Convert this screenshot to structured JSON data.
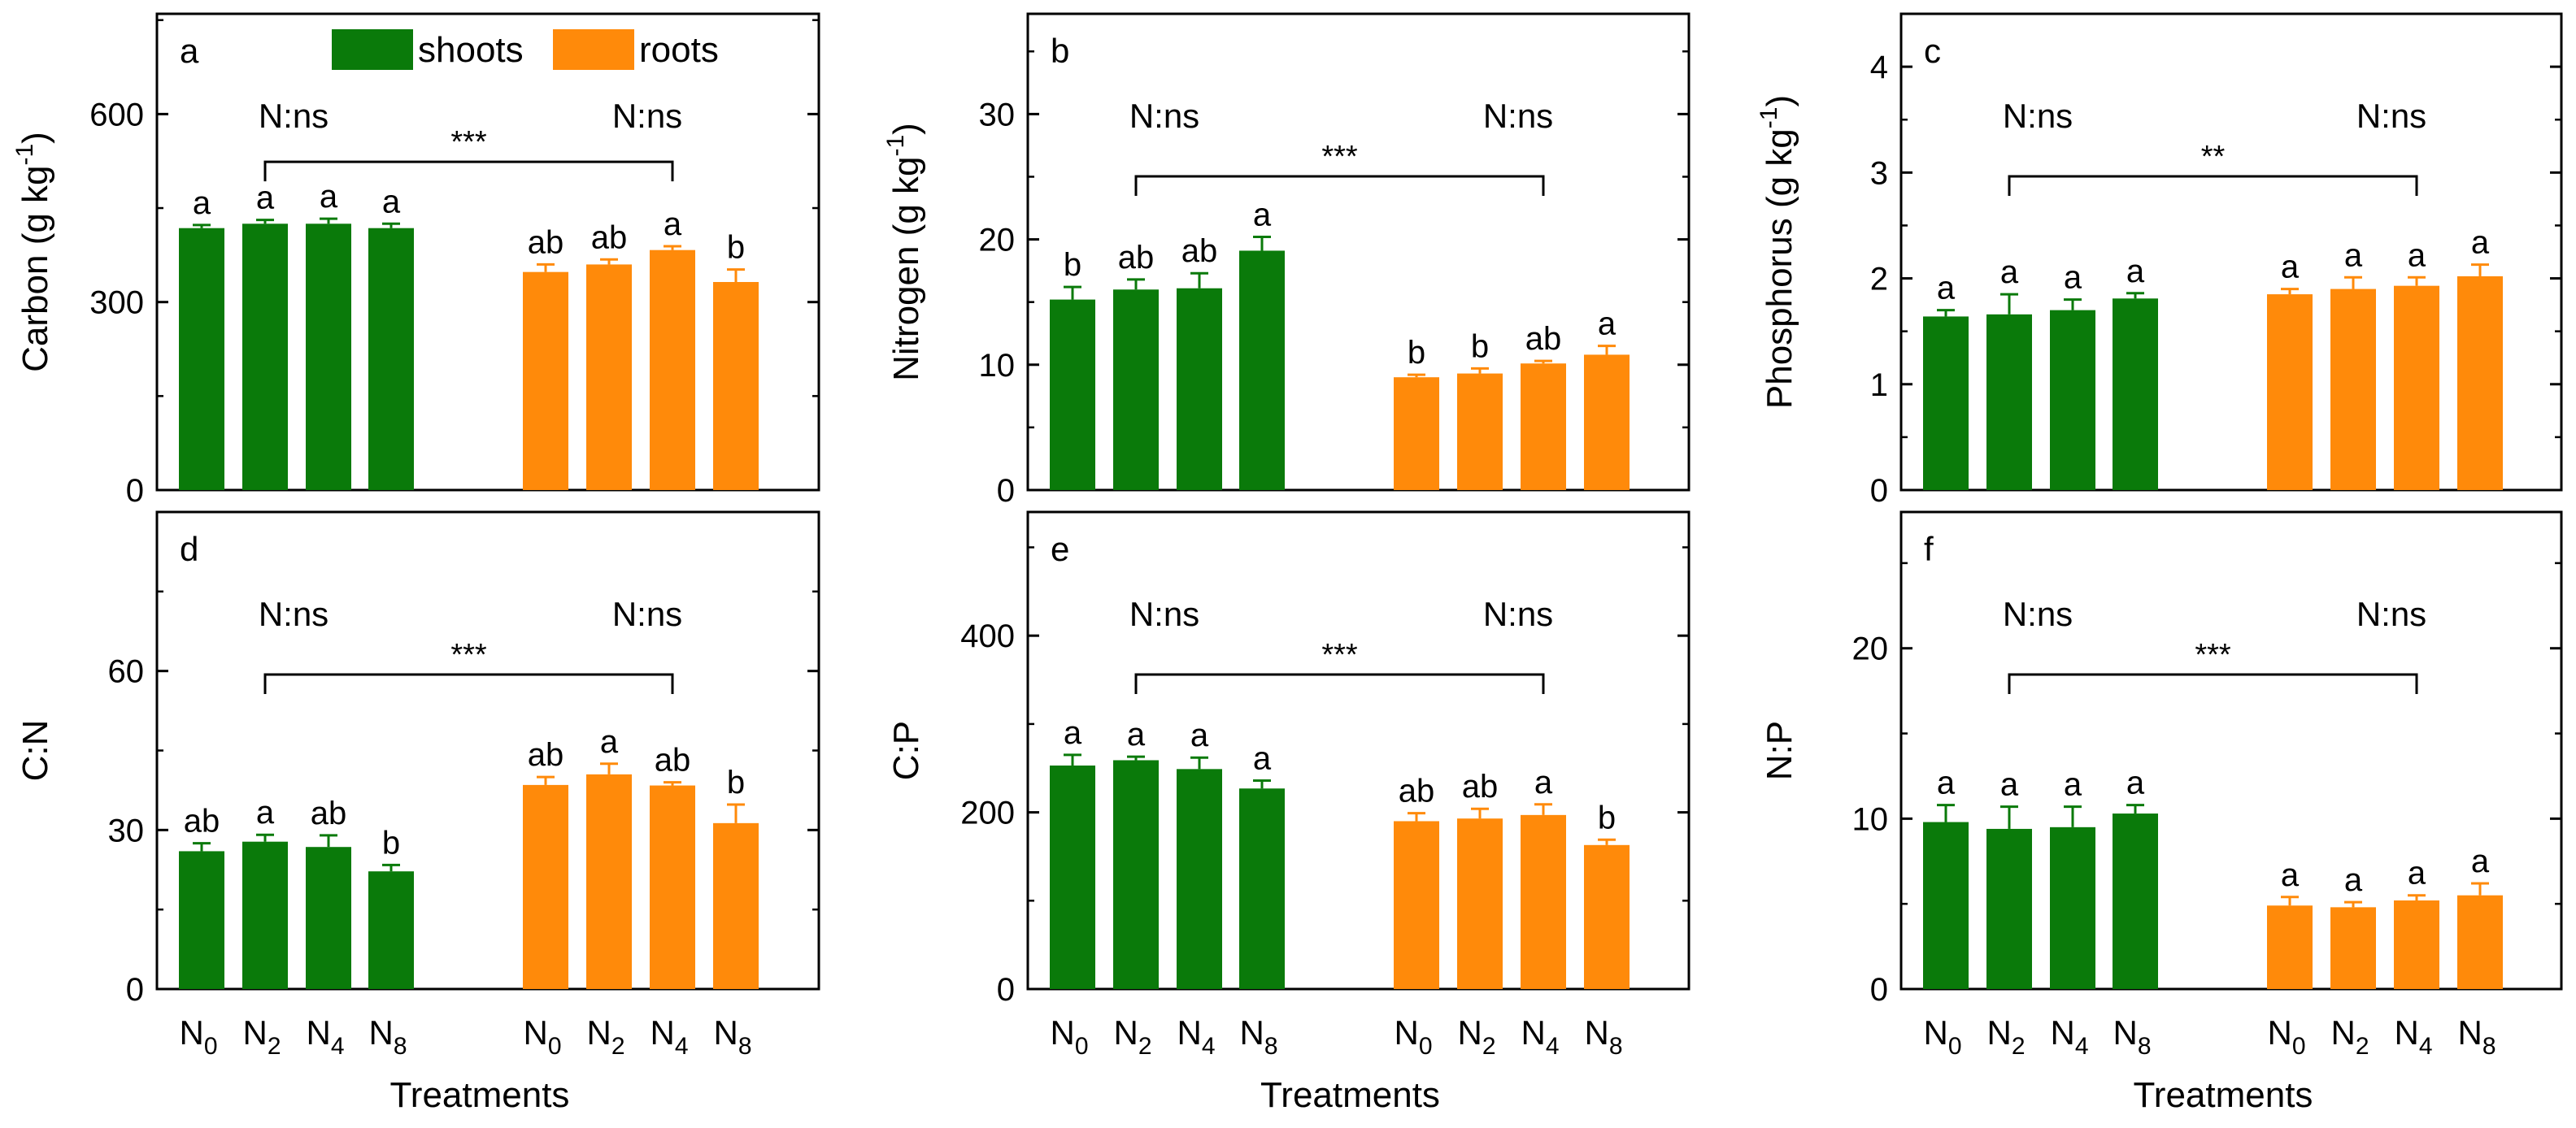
{
  "figure": {
    "xlabel": "Treatments",
    "categories": [
      {
        "main": "N",
        "sub": "0"
      },
      {
        "main": "N",
        "sub": "2"
      },
      {
        "main": "N",
        "sub": "4"
      },
      {
        "main": "N",
        "sub": "8"
      }
    ],
    "legend": [
      {
        "label": "shoots",
        "color": "#0a7a0a"
      },
      {
        "label": "roots",
        "color": "#ff8a0a"
      }
    ],
    "nitrogen_effect_label": "N:ns"
  },
  "chart_data": [
    {
      "type": "bar",
      "panel": "a",
      "ylabel": "Carbon (g kg",
      "ylabel_sup": "-1",
      "ylabel_tail": ")",
      "ylim": [
        0,
        760
      ],
      "yticks": [
        0,
        300,
        600
      ],
      "series": [
        {
          "name": "shoots",
          "values": [
            418,
            425,
            425,
            418
          ],
          "errors": [
            5,
            6,
            8,
            7
          ],
          "letters": [
            "a",
            "a",
            "a",
            "a"
          ]
        },
        {
          "name": "roots",
          "values": [
            348,
            360,
            383,
            332
          ],
          "errors": [
            12,
            8,
            6,
            20
          ],
          "letters": [
            "ab",
            "ab",
            "a",
            "b"
          ]
        }
      ],
      "significance": "***"
    },
    {
      "type": "bar",
      "panel": "b",
      "ylabel": "Nitrogen (g kg",
      "ylabel_sup": "-1",
      "ylabel_tail": ")",
      "ylim": [
        0,
        38
      ],
      "yticks": [
        0,
        10,
        20,
        30
      ],
      "series": [
        {
          "name": "shoots",
          "values": [
            15.2,
            16.0,
            16.1,
            19.1
          ],
          "errors": [
            1.0,
            0.8,
            1.2,
            1.1
          ],
          "letters": [
            "b",
            "ab",
            "ab",
            "a"
          ]
        },
        {
          "name": "roots",
          "values": [
            9.0,
            9.3,
            10.1,
            10.8
          ],
          "errors": [
            0.2,
            0.4,
            0.2,
            0.7
          ],
          "letters": [
            "b",
            "b",
            "ab",
            "a"
          ]
        }
      ],
      "significance": "***"
    },
    {
      "type": "bar",
      "panel": "c",
      "ylabel": "Phosphorus (g kg",
      "ylabel_sup": "-1",
      "ylabel_tail": ")",
      "ylim": [
        0,
        4.5
      ],
      "yticks": [
        0,
        1,
        2,
        3,
        4
      ],
      "series": [
        {
          "name": "shoots",
          "values": [
            1.64,
            1.66,
            1.7,
            1.81
          ],
          "errors": [
            0.06,
            0.19,
            0.1,
            0.05
          ],
          "letters": [
            "a",
            "a",
            "a",
            "a"
          ]
        },
        {
          "name": "roots",
          "values": [
            1.85,
            1.9,
            1.93,
            2.02
          ],
          "errors": [
            0.05,
            0.11,
            0.08,
            0.11
          ],
          "letters": [
            "a",
            "a",
            "a",
            "a"
          ]
        }
      ],
      "significance": "**"
    },
    {
      "type": "bar",
      "panel": "d",
      "ylabel": "C:N",
      "ylim": [
        0,
        90
      ],
      "yticks": [
        0,
        30,
        60
      ],
      "series": [
        {
          "name": "shoots",
          "values": [
            26.0,
            27.8,
            26.8,
            22.2
          ],
          "errors": [
            1.5,
            1.3,
            2.2,
            1.2
          ],
          "letters": [
            "ab",
            "a",
            "ab",
            "b"
          ]
        },
        {
          "name": "roots",
          "values": [
            38.5,
            40.5,
            38.4,
            31.3
          ],
          "errors": [
            1.5,
            2.0,
            0.6,
            3.5
          ],
          "letters": [
            "ab",
            "a",
            "ab",
            "b"
          ]
        }
      ],
      "significance": "***"
    },
    {
      "type": "bar",
      "panel": "e",
      "ylabel": "C:P",
      "ylim": [
        0,
        540
      ],
      "yticks": [
        0,
        200,
        400
      ],
      "series": [
        {
          "name": "shoots",
          "values": [
            253,
            259,
            249,
            227
          ],
          "errors": [
            12,
            4,
            13,
            9
          ],
          "letters": [
            "a",
            "a",
            "a",
            "a"
          ]
        },
        {
          "name": "roots",
          "values": [
            190,
            193,
            197,
            163
          ],
          "errors": [
            9,
            11,
            12,
            6
          ],
          "letters": [
            "ab",
            "ab",
            "a",
            "b"
          ]
        }
      ],
      "significance": "***"
    },
    {
      "type": "bar",
      "panel": "f",
      "ylabel": "N:P",
      "ylim": [
        0,
        28
      ],
      "yticks": [
        0,
        10,
        20
      ],
      "series": [
        {
          "name": "shoots",
          "values": [
            9.8,
            9.4,
            9.5,
            10.3
          ],
          "errors": [
            1.0,
            1.3,
            1.2,
            0.5
          ],
          "letters": [
            "a",
            "a",
            "a",
            "a"
          ]
        },
        {
          "name": "roots",
          "values": [
            4.9,
            4.8,
            5.2,
            5.5
          ],
          "errors": [
            0.5,
            0.3,
            0.3,
            0.7
          ],
          "letters": [
            "a",
            "a",
            "a",
            "a"
          ]
        }
      ],
      "significance": "***"
    }
  ]
}
